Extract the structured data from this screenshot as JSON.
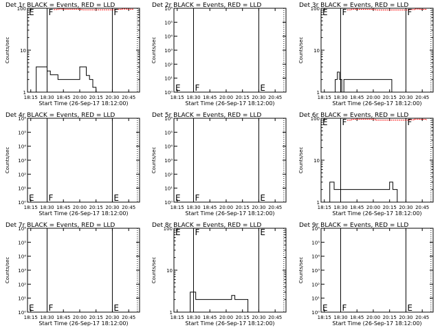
{
  "figure": {
    "background": "#ffffff",
    "colors": {
      "events": "#000000",
      "lld": "#ff0000",
      "frame": "#000000"
    }
  },
  "chart_data": [
    {
      "type": "line",
      "title": "Det 1r BLACK = Events, RED = LLD",
      "xlabel": "Start Time (26-Sep-17 18:12:00)",
      "ylabel": "Counts/sec",
      "yscale": "log",
      "ylim": [
        1,
        100
      ],
      "y_tick_labels": [
        "1",
        "10",
        "100"
      ],
      "xlim": [
        "18:12",
        "20:55"
      ],
      "x_tick_labels": [
        "18:15",
        "18:30",
        "18:45",
        "20:00",
        "20:15",
        "20:30",
        "20:45"
      ],
      "annotations": [
        {
          "text": "E",
          "x": "18:12",
          "y": 100
        },
        {
          "text": "F",
          "x": "18:30",
          "y": 100
        },
        {
          "text": "F",
          "x": "20:30",
          "y": 100
        }
      ],
      "vlines": [
        {
          "x": "18:30",
          "style": "solid"
        },
        {
          "x": "20:30",
          "style": "solid"
        },
        {
          "x": "20:53",
          "style": "dotted"
        }
      ],
      "series": [
        {
          "role": "events",
          "color": "#000000",
          "x": [
            "18:12",
            "18:20",
            "18:25",
            "18:30",
            "18:33",
            "18:36",
            "18:40",
            "18:45",
            "19:00",
            "20:00",
            "20:02",
            "20:06",
            "20:09",
            "20:12",
            "20:15"
          ],
          "y": [
            1,
            4,
            4,
            3.2,
            2.6,
            2.6,
            2,
            2,
            2,
            4,
            4,
            2.5,
            2,
            1.3,
            1
          ]
        },
        {
          "role": "lld",
          "color": "#ff0000",
          "x": [
            "18:36",
            "18:40",
            "18:45",
            "20:00",
            "20:02",
            "20:33",
            "20:38",
            "20:43",
            "20:49"
          ],
          "y": [
            93,
            96,
            95,
            94,
            92,
            94,
            96,
            95,
            93
          ]
        }
      ]
    },
    {
      "type": "line",
      "title": "Det 2r BLACK = Events, RED = LLD",
      "xlabel": "Start Time (26-Sep-17 18:12:00)",
      "ylabel": "Counts/sec",
      "yscale": "log",
      "ylim": [
        1,
        1000000
      ],
      "y_tick_labels": [
        "10⁰",
        "10¹",
        "10²",
        "10³",
        "10⁴",
        "10⁵",
        "10⁶"
      ],
      "xlim": [
        "18:12",
        "20:55"
      ],
      "x_tick_labels": [
        "18:15",
        "18:30",
        "18:45",
        "20:00",
        "20:15",
        "20:30",
        "20:45"
      ],
      "annotations": [
        {
          "text": "E",
          "x": "18:12",
          "y": 1.5
        },
        {
          "text": "F",
          "x": "18:30",
          "y": 1.5
        },
        {
          "text": "E",
          "x": "20:30",
          "y": 1.5
        }
      ],
      "vlines": [
        {
          "x": "18:30",
          "style": "solid"
        },
        {
          "x": "20:30",
          "style": "solid"
        },
        {
          "x": "20:53",
          "style": "dotted"
        }
      ],
      "series": []
    },
    {
      "type": "line",
      "title": "Det 3r BLACK = Events, RED = LLD",
      "xlabel": "Start Time (26-Sep-17 18:12:00)",
      "ylabel": "Counts/sec",
      "yscale": "log",
      "ylim": [
        1,
        100
      ],
      "y_tick_labels": [
        "1",
        "10",
        "100"
      ],
      "xlim": [
        "18:12",
        "20:55"
      ],
      "x_tick_labels": [
        "18:15",
        "18:30",
        "18:45",
        "20:00",
        "20:15",
        "20:30",
        "20:45"
      ],
      "annotations": [
        {
          "text": "E",
          "x": "18:12",
          "y": 100
        },
        {
          "text": "F",
          "x": "18:30",
          "y": 100
        },
        {
          "text": "F",
          "x": "20:30",
          "y": 100
        }
      ],
      "vlines": [
        {
          "x": "18:30",
          "style": "solid"
        },
        {
          "x": "20:30",
          "style": "solid"
        },
        {
          "x": "20:53",
          "style": "dotted"
        }
      ],
      "series": [
        {
          "role": "events",
          "color": "#000000",
          "x": [
            "18:12",
            "18:25",
            "18:27",
            "18:29",
            "18:31",
            "18:33",
            "18:40",
            "18:50",
            "20:00",
            "20:10",
            "20:15",
            "20:17"
          ],
          "y": [
            1,
            2,
            3,
            2,
            1,
            2,
            2,
            2,
            2,
            2,
            2,
            1
          ]
        },
        {
          "role": "lld",
          "color": "#ff0000",
          "x": [
            "18:36",
            "18:40",
            "18:45",
            "20:00",
            "20:02",
            "20:33",
            "20:38",
            "20:43",
            "20:49"
          ],
          "y": [
            92,
            95,
            94,
            93,
            91,
            93,
            96,
            94,
            92
          ]
        }
      ]
    },
    {
      "type": "line",
      "title": "Det 4r BLACK = Events, RED = LLD",
      "xlabel": "Start Time (26-Sep-17 18:12:00)",
      "ylabel": "Counts/sec",
      "yscale": "log",
      "ylim": [
        1,
        1000000
      ],
      "y_tick_labels": [
        "10⁰",
        "10¹",
        "10²",
        "10³",
        "10⁴",
        "10⁵",
        "10⁶"
      ],
      "xlim": [
        "18:12",
        "20:55"
      ],
      "x_tick_labels": [
        "18:15",
        "18:30",
        "18:45",
        "20:00",
        "20:15",
        "20:30",
        "20:45"
      ],
      "annotations": [
        {
          "text": "E",
          "x": "18:12",
          "y": 1.5
        },
        {
          "text": "F",
          "x": "18:30",
          "y": 1.5
        },
        {
          "text": "E",
          "x": "20:30",
          "y": 1.5
        }
      ],
      "vlines": [
        {
          "x": "18:30",
          "style": "solid"
        },
        {
          "x": "20:30",
          "style": "solid"
        },
        {
          "x": "20:53",
          "style": "dotted"
        }
      ],
      "series": []
    },
    {
      "type": "line",
      "title": "Det 5r BLACK = Events, RED = LLD",
      "xlabel": "Start Time (26-Sep-17 18:12:00)",
      "ylabel": "Counts/sec",
      "yscale": "log",
      "ylim": [
        1,
        1000000
      ],
      "y_tick_labels": [
        "10⁰",
        "10¹",
        "10²",
        "10³",
        "10⁴",
        "10⁵",
        "10⁶"
      ],
      "xlim": [
        "18:12",
        "20:55"
      ],
      "x_tick_labels": [
        "18:15",
        "18:30",
        "18:45",
        "20:00",
        "20:15",
        "20:30",
        "20:45"
      ],
      "annotations": [
        {
          "text": "E",
          "x": "18:12",
          "y": 1.5
        },
        {
          "text": "F",
          "x": "18:30",
          "y": 1.5
        },
        {
          "text": "E",
          "x": "20:30",
          "y": 1.5
        }
      ],
      "vlines": [
        {
          "x": "18:30",
          "style": "solid"
        },
        {
          "x": "20:30",
          "style": "solid"
        },
        {
          "x": "20:53",
          "style": "dotted"
        }
      ],
      "series": []
    },
    {
      "type": "line",
      "title": "Det 6r BLACK = Events, RED = LLD",
      "xlabel": "Start Time (26-Sep-17 18:12:00)",
      "ylabel": "Counts/sec",
      "yscale": "log",
      "ylim": [
        1,
        100
      ],
      "y_tick_labels": [
        "1",
        "10",
        "100"
      ],
      "xlim": [
        "18:12",
        "20:55"
      ],
      "x_tick_labels": [
        "18:15",
        "18:30",
        "18:45",
        "20:00",
        "20:15",
        "20:30",
        "20:45"
      ],
      "annotations": [
        {
          "text": "E",
          "x": "18:12",
          "y": 100
        },
        {
          "text": "F",
          "x": "18:30",
          "y": 100
        },
        {
          "text": "F",
          "x": "20:30",
          "y": 100
        }
      ],
      "vlines": [
        {
          "x": "18:30",
          "style": "solid"
        },
        {
          "x": "20:30",
          "style": "solid"
        },
        {
          "x": "20:53",
          "style": "dotted"
        }
      ],
      "series": [
        {
          "role": "events",
          "color": "#000000",
          "x": [
            "18:12",
            "18:20",
            "18:24",
            "18:28",
            "18:32",
            "18:38",
            "18:45",
            "18:50",
            "20:00",
            "20:10",
            "20:15",
            "20:18",
            "20:22"
          ],
          "y": [
            1,
            3,
            2,
            2,
            2,
            2,
            2,
            2,
            2,
            2,
            3,
            2,
            1
          ]
        },
        {
          "role": "lld",
          "color": "#ff0000",
          "x": [
            "18:36",
            "18:40",
            "18:45",
            "20:00",
            "20:02",
            "20:33",
            "20:38",
            "20:43",
            "20:49"
          ],
          "y": [
            90,
            94,
            95,
            93,
            90,
            92,
            95,
            94,
            91
          ]
        }
      ]
    },
    {
      "type": "line",
      "title": "Det 7r BLACK = Events, RED = LLD",
      "xlabel": "Start Time (26-Sep-17 18:12:00)",
      "ylabel": "Counts/sec",
      "yscale": "log",
      "ylim": [
        1,
        1000000
      ],
      "y_tick_labels": [
        "10⁰",
        "10¹",
        "10²",
        "10³",
        "10⁴",
        "10⁵",
        "10⁶"
      ],
      "xlim": [
        "18:12",
        "20:55"
      ],
      "x_tick_labels": [
        "18:15",
        "18:30",
        "18:45",
        "20:00",
        "20:15",
        "20:30",
        "20:45"
      ],
      "annotations": [
        {
          "text": "E",
          "x": "18:12",
          "y": 1.5
        },
        {
          "text": "F",
          "x": "18:30",
          "y": 1.5
        },
        {
          "text": "E",
          "x": "20:30",
          "y": 1.5
        }
      ],
      "vlines": [
        {
          "x": "18:30",
          "style": "solid"
        },
        {
          "x": "20:30",
          "style": "solid"
        },
        {
          "x": "20:53",
          "style": "dotted"
        }
      ],
      "series": []
    },
    {
      "type": "line",
      "title": "Det 8r BLACK = Events, RED = LLD",
      "xlabel": "Start Time (26-Sep-17 18:12:00)",
      "ylabel": "Counts/sec",
      "yscale": "log",
      "ylim": [
        1,
        100
      ],
      "y_tick_labels": [
        "1",
        "10",
        "100"
      ],
      "xlim": [
        "18:12",
        "20:55"
      ],
      "x_tick_labels": [
        "18:15",
        "18:30",
        "18:45",
        "20:00",
        "20:15",
        "20:30",
        "20:45"
      ],
      "annotations": [
        {
          "text": "E",
          "x": "18:12",
          "y": 100
        },
        {
          "text": "F",
          "x": "18:30",
          "y": 100
        },
        {
          "text": "E",
          "x": "20:30",
          "y": 100
        }
      ],
      "vlines": [
        {
          "x": "18:30",
          "style": "solid"
        },
        {
          "x": "20:30",
          "style": "solid"
        },
        {
          "x": "20:53",
          "style": "dotted"
        }
      ],
      "series": [
        {
          "role": "events",
          "color": "#000000",
          "x": [
            "18:12",
            "18:27",
            "18:32",
            "18:36",
            "18:40",
            "18:45",
            "19:00",
            "20:00",
            "20:05",
            "20:08",
            "20:10",
            "20:15",
            "20:20"
          ],
          "y": [
            1,
            3,
            2,
            2,
            2,
            2,
            2,
            2,
            2.5,
            2,
            2,
            2,
            1
          ]
        }
      ]
    },
    {
      "type": "line",
      "title": "Det 9r BLACK = Events, RED = LLD",
      "xlabel": "Start Time (26-Sep-17 18:12:00)",
      "ylabel": "Counts/sec",
      "yscale": "log",
      "ylim": [
        1,
        1000000
      ],
      "y_tick_labels": [
        "10⁰",
        "10¹",
        "10²",
        "10³",
        "10⁴",
        "10⁵",
        "10⁶"
      ],
      "xlim": [
        "18:12",
        "20:55"
      ],
      "x_tick_labels": [
        "18:15",
        "18:30",
        "18:45",
        "20:00",
        "20:15",
        "20:30",
        "20:45"
      ],
      "annotations": [
        {
          "text": "E",
          "x": "18:12",
          "y": 1.5
        },
        {
          "text": "F",
          "x": "18:30",
          "y": 1.5
        },
        {
          "text": "E",
          "x": "20:30",
          "y": 1.5
        }
      ],
      "vlines": [
        {
          "x": "18:30",
          "style": "solid"
        },
        {
          "x": "20:30",
          "style": "solid"
        },
        {
          "x": "20:53",
          "style": "dotted"
        }
      ],
      "series": []
    }
  ]
}
